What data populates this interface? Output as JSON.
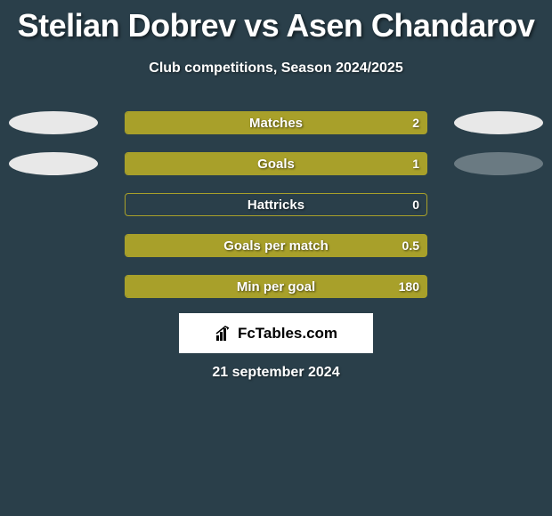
{
  "title": "Stelian Dobrev vs Asen Chandarov",
  "subtitle": "Club competitions, Season 2024/2025",
  "date": "21 september 2024",
  "logo": {
    "text": "FcTables.com",
    "icon_color": "#000000",
    "bg": "#ffffff"
  },
  "chart": {
    "bg": "#2a3f4a",
    "label_color": "#ffffff",
    "label_fontsize": 15,
    "value_fontsize": 14,
    "shadow": "1px 1px 2px rgba(0,0,0,0.6)",
    "track_width": 340,
    "track_height": 26,
    "rows": [
      {
        "label": "Matches",
        "value": "2",
        "fill_pct": 100,
        "fill_color": "#a8a02a",
        "border_color": "#a8a02a",
        "left_oval": "#e8e8e8",
        "right_oval": "#e8e8e8"
      },
      {
        "label": "Goals",
        "value": "1",
        "fill_pct": 100,
        "fill_color": "#a8a02a",
        "border_color": "#a8a02a",
        "left_oval": "#e8e8e8",
        "right_oval": "#6a7a82"
      },
      {
        "label": "Hattricks",
        "value": "0",
        "fill_pct": 0,
        "fill_color": "#a8a02a",
        "border_color": "#a8a02a",
        "left_oval": null,
        "right_oval": null
      },
      {
        "label": "Goals per match",
        "value": "0.5",
        "fill_pct": 100,
        "fill_color": "#a8a02a",
        "border_color": "#a8a02a",
        "left_oval": null,
        "right_oval": null
      },
      {
        "label": "Min per goal",
        "value": "180",
        "fill_pct": 100,
        "fill_color": "#a8a02a",
        "border_color": "#a8a02a",
        "left_oval": null,
        "right_oval": null
      }
    ]
  }
}
